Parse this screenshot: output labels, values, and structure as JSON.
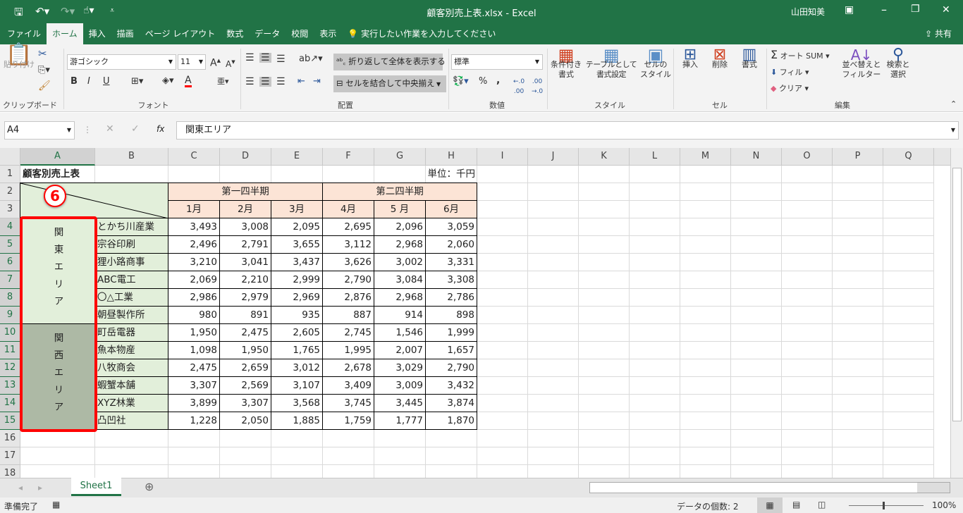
{
  "window": {
    "title": "顧客別売上表.xlsx  -  Excel",
    "user": "山田知美"
  },
  "tabs": [
    "ファイル",
    "ホーム",
    "挿入",
    "描画",
    "ページ レイアウト",
    "数式",
    "データ",
    "校閲",
    "表示"
  ],
  "tell_me": "実行したい作業を入力してください",
  "share": "共有",
  "ribbon": {
    "clipboard": {
      "paste": "貼り付け",
      "label": "クリップボード"
    },
    "font": {
      "name": "游ゴシック",
      "size": "11",
      "bold": "B",
      "italic": "I",
      "underline": "U",
      "label": "フォント"
    },
    "alignment": {
      "wrap": "折り返して全体を表示する",
      "merge": "セルを結合して中央揃え",
      "label": "配置"
    },
    "number": {
      "format": "標準",
      "percent": "%",
      "comma": ",",
      "label": "数値"
    },
    "styles": {
      "conditional": [
        "条件付き",
        "書式"
      ],
      "table": [
        "テーブルとして",
        "書式設定"
      ],
      "cell": [
        "セルの",
        "スタイル"
      ],
      "label": "スタイル"
    },
    "cells": {
      "insert": "挿入",
      "delete": "削除",
      "format": "書式",
      "label": "セル"
    },
    "editing": {
      "autosum": "オート SUM",
      "fill": "フィル",
      "clear": "クリア",
      "sort": [
        "並べ替えと",
        "フィルター"
      ],
      "find": [
        "検索と",
        "選択"
      ],
      "label": "編集"
    }
  },
  "formula_bar": {
    "name_box": "A4",
    "fx": "fx",
    "value": "関東エリア"
  },
  "columns": [
    "A",
    "B",
    "C",
    "D",
    "E",
    "F",
    "G",
    "H",
    "I",
    "J",
    "K",
    "L",
    "M",
    "N",
    "O",
    "P",
    "Q"
  ],
  "rows": [
    "1",
    "2",
    "3",
    "4",
    "5",
    "6",
    "7",
    "8",
    "9",
    "10",
    "11",
    "12",
    "13",
    "14",
    "15",
    "16",
    "17",
    "18"
  ],
  "sheet": {
    "title": "顧客別売上表",
    "unit": "単位：千円",
    "quarters": [
      "第一四半期",
      "第二四半期"
    ],
    "months": [
      "1月",
      "2月",
      "3月",
      "4月",
      "5 月",
      "6月"
    ],
    "regions": [
      {
        "name": "関東エリア",
        "chars": [
          "関",
          "東",
          "エ",
          "リ",
          "ア"
        ],
        "color": "#e2efda"
      },
      {
        "name": "関西エリア",
        "chars": [
          "関",
          "西",
          "エ",
          "リ",
          "ア"
        ],
        "color": "#adb9a5"
      }
    ],
    "customers": [
      {
        "name": "とかち川産業",
        "values": [
          "3,493",
          "3,008",
          "2,095",
          "2,695",
          "2,096",
          "3,059"
        ]
      },
      {
        "name": "宗谷印刷",
        "values": [
          "2,496",
          "2,791",
          "3,655",
          "3,112",
          "2,968",
          "2,060"
        ]
      },
      {
        "name": "狸小路商事",
        "values": [
          "3,210",
          "3,041",
          "3,437",
          "3,626",
          "3,002",
          "3,331"
        ]
      },
      {
        "name": "ABC電工",
        "values": [
          "2,069",
          "2,210",
          "2,999",
          "2,790",
          "3,084",
          "3,308"
        ]
      },
      {
        "name": "〇△工業",
        "values": [
          "2,986",
          "2,979",
          "2,969",
          "2,876",
          "2,968",
          "2,786"
        ]
      },
      {
        "name": "朝昼製作所",
        "values": [
          "980",
          "891",
          "935",
          "887",
          "914",
          "898"
        ]
      },
      {
        "name": "町岳電器",
        "values": [
          "1,950",
          "2,475",
          "2,605",
          "2,745",
          "1,546",
          "1,999"
        ]
      },
      {
        "name": "魚本物産",
        "values": [
          "1,098",
          "1,950",
          "1,765",
          "1,995",
          "2,007",
          "1,657"
        ]
      },
      {
        "name": "八牧商会",
        "values": [
          "2,475",
          "2,659",
          "3,012",
          "2,678",
          "3,029",
          "2,790"
        ]
      },
      {
        "name": "蝦蟹本舗",
        "values": [
          "3,307",
          "2,569",
          "3,107",
          "3,409",
          "3,009",
          "3,432"
        ]
      },
      {
        "name": "XYZ林業",
        "values": [
          "3,899",
          "3,307",
          "3,568",
          "3,745",
          "3,445",
          "3,874"
        ]
      },
      {
        "name": "凸凹社",
        "values": [
          "1,228",
          "2,050",
          "1,885",
          "1,759",
          "1,777",
          "1,870"
        ]
      }
    ]
  },
  "annotation": {
    "step": "6",
    "color": "#ff0000"
  },
  "sheet_tab": "Sheet1",
  "status": {
    "ready": "準備完了",
    "count": "データの個数: 2",
    "zoom": "100%"
  },
  "colors": {
    "excel_green": "#217346",
    "header_fill": "#fce4d6",
    "label_fill": "#e2efda"
  }
}
